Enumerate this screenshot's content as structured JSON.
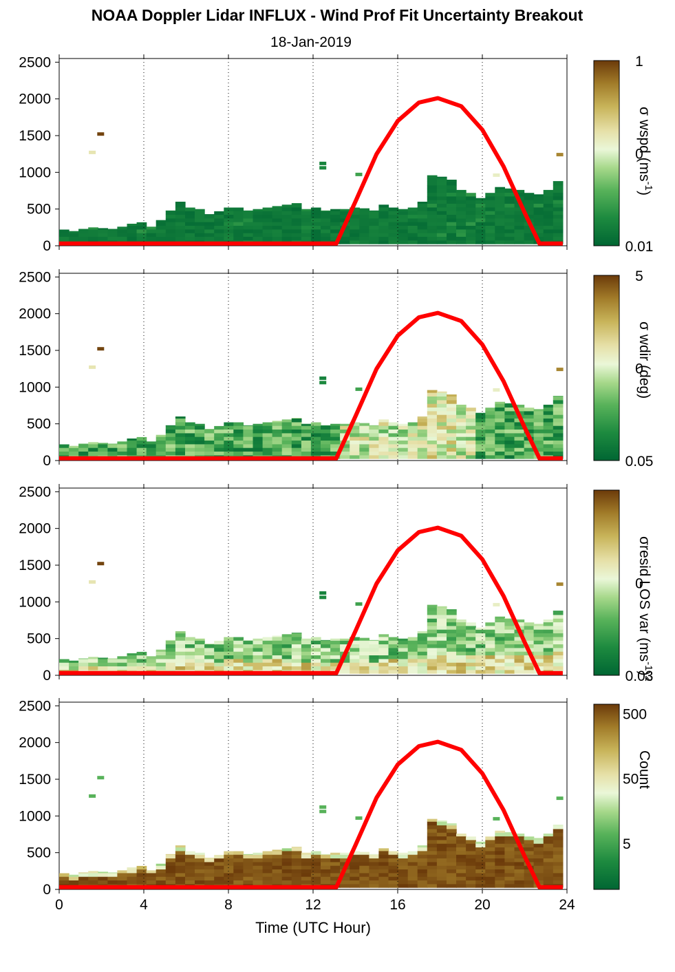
{
  "figure": {
    "title": "NOAA Doppler Lidar INFLUX - Wind Prof Fit Uncertainty Breakout",
    "subtitle": "18-Jan-2019",
    "xlabel": "Time (UTC Hour)"
  },
  "colors": {
    "sun_curve": "#ff0000",
    "colormap": [
      "#006633",
      "#1d8a3f",
      "#58b25a",
      "#a6d88a",
      "#eaf7d8",
      "#e6e0a8",
      "#c8b45a",
      "#a07a28",
      "#6b3a0a"
    ]
  },
  "chart_data": [
    {
      "type": "heatmap",
      "panel": "wspd",
      "x": {
        "range": [
          0,
          24
        ],
        "ticks": [
          0,
          4,
          8,
          12,
          16,
          20,
          24
        ],
        "grid_dotted": [
          4,
          8,
          12,
          16,
          20,
          24
        ]
      },
      "y": {
        "range": [
          0,
          2550
        ],
        "ticks": [
          0,
          500,
          1000,
          1500,
          2000,
          2500
        ]
      },
      "colorbar": {
        "label": "σ wspd (ms-1)",
        "label_parts": [
          "σ wspd (ms",
          "-1",
          ")"
        ],
        "ticks": [
          "1",
          "0",
          "0.01"
        ],
        "scale": "log"
      },
      "data_top_m": [
        220,
        200,
        230,
        250,
        240,
        230,
        260,
        300,
        320,
        260,
        350,
        480,
        600,
        520,
        500,
        430,
        470,
        520,
        520,
        480,
        500,
        520,
        540,
        560,
        580,
        500,
        520,
        480,
        500,
        500,
        520,
        510,
        480,
        560,
        520,
        500,
        520,
        600,
        960,
        940,
        900,
        760,
        720,
        650,
        720,
        800,
        780,
        760,
        720,
        700,
        760,
        880
      ],
      "color_level": "low (dark green) everywhere"
    },
    {
      "type": "heatmap",
      "panel": "wdir",
      "x": {
        "range": [
          0,
          24
        ],
        "ticks": [
          0,
          4,
          8,
          12,
          16,
          20,
          24
        ],
        "grid_dotted": [
          4,
          8,
          12,
          16,
          20,
          24
        ]
      },
      "y": {
        "range": [
          0,
          2550
        ],
        "ticks": [
          0,
          500,
          1000,
          1500,
          2000,
          2500
        ]
      },
      "colorbar": {
        "label": "σ wdir (deg)",
        "label_parts": [
          "σ wdir (deg)"
        ],
        "ticks": [
          "5",
          "0",
          "0.05"
        ],
        "scale": "log"
      },
      "color_level": "low-mid (greens) to mid near 17-18 UTC"
    },
    {
      "type": "heatmap",
      "panel": "resid",
      "x": {
        "range": [
          0,
          24
        ],
        "ticks": [
          0,
          4,
          8,
          12,
          16,
          20,
          24
        ],
        "grid_dotted": [
          4,
          8,
          12,
          16,
          20,
          24
        ]
      },
      "y": {
        "range": [
          0,
          2550
        ],
        "ticks": [
          0,
          500,
          1000,
          1500,
          2000,
          2500
        ]
      },
      "colorbar": {
        "label": "σresid LOS var (ms-1)2",
        "label_parts": [
          "σresid LOS var (ms",
          "-1",
          ")",
          "2"
        ],
        "ticks": [
          "0",
          "0.03"
        ],
        "scale": "log"
      },
      "color_level": "mixed greens and pale"
    },
    {
      "type": "heatmap",
      "panel": "count",
      "x": {
        "range": [
          0,
          24
        ],
        "ticks": [
          0,
          4,
          8,
          12,
          16,
          20,
          24
        ],
        "grid_dotted": [
          4,
          8,
          12,
          16,
          20,
          24
        ]
      },
      "y": {
        "range": [
          0,
          2550
        ],
        "ticks": [
          0,
          500,
          1000,
          1500,
          2000,
          2500
        ]
      },
      "colorbar": {
        "label": "Count",
        "label_parts": [
          "Count"
        ],
        "ticks": [
          "500",
          "50",
          "5"
        ],
        "scale": "log"
      },
      "color_level": "high (brown) through most of layer"
    }
  ],
  "sun_curve": {
    "description_free": true,
    "points": [
      [
        0,
        30
      ],
      [
        13.1,
        30
      ],
      [
        14,
        600
      ],
      [
        15,
        1250
      ],
      [
        16,
        1700
      ],
      [
        17,
        1950
      ],
      [
        17.9,
        2010
      ],
      [
        19,
        1900
      ],
      [
        20,
        1580
      ],
      [
        21,
        1080
      ],
      [
        22,
        450
      ],
      [
        22.7,
        30
      ],
      [
        23.8,
        30
      ]
    ]
  }
}
